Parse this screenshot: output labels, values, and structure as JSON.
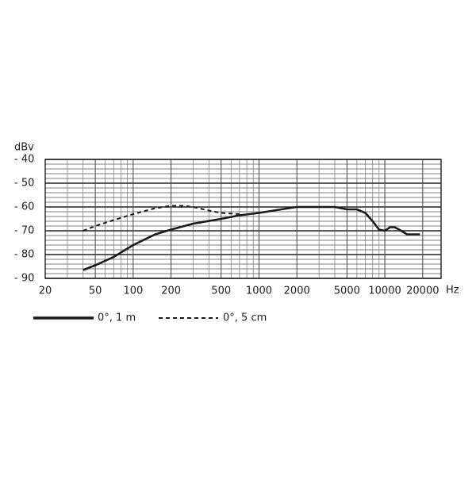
{
  "chart_data": {
    "type": "line",
    "y_unit": "dBv",
    "x_unit": "Hz",
    "xscale": "log",
    "grid": true,
    "xlim": [
      20,
      28000
    ],
    "ylim": [
      -90,
      -40
    ],
    "xticks": [
      20,
      50,
      100,
      200,
      500,
      1000,
      2000,
      5000,
      10000,
      20000
    ],
    "xminor": [
      30,
      40,
      60,
      70,
      80,
      90,
      300,
      400,
      600,
      700,
      800,
      900,
      3000,
      4000,
      6000,
      7000,
      8000,
      9000
    ],
    "yticks": [
      {
        "value": -90,
        "label": "- 90"
      },
      {
        "value": -80,
        "label": "- 80"
      },
      {
        "value": -70,
        "label": "- 70"
      },
      {
        "value": -60,
        "label": "- 60"
      },
      {
        "value": -50,
        "label": "- 50"
      },
      {
        "value": -40,
        "label": "- 40"
      }
    ],
    "yminor": [
      -88,
      -86,
      -84,
      -82,
      -78,
      -76,
      -74,
      -72,
      -68,
      -66,
      -64,
      -62,
      -58,
      -56,
      -54,
      -52,
      -48,
      -46,
      -44,
      -42
    ],
    "series": [
      {
        "name": "0°, 1 m",
        "color": "#1a1a1a",
        "dash": false,
        "x": [
          40,
          50,
          70,
          100,
          150,
          200,
          300,
          500,
          700,
          1000,
          1500,
          2000,
          3000,
          4000,
          5000,
          6000,
          7000,
          8000,
          9000,
          10000,
          11000,
          12000,
          13000,
          15000,
          19000
        ],
        "values": [
          -86.5,
          -84.5,
          -81,
          -76,
          -71.5,
          -69.5,
          -67,
          -65,
          -63.5,
          -62.5,
          -61,
          -60,
          -60,
          -60,
          -61,
          -61,
          -62.5,
          -66,
          -69.5,
          -70,
          -68.5,
          -68.5,
          -69.5,
          -71.5,
          -71.5
        ]
      },
      {
        "name": "0°, 5 cm",
        "color": "#1a1a1a",
        "dash": true,
        "x": [
          40,
          50,
          70,
          100,
          150,
          200,
          250,
          300,
          400,
          500,
          700
        ],
        "values": [
          -70,
          -68,
          -65.5,
          -63,
          -60.5,
          -59.5,
          -59.5,
          -60,
          -61.5,
          -62.5,
          -63
        ]
      }
    ]
  }
}
